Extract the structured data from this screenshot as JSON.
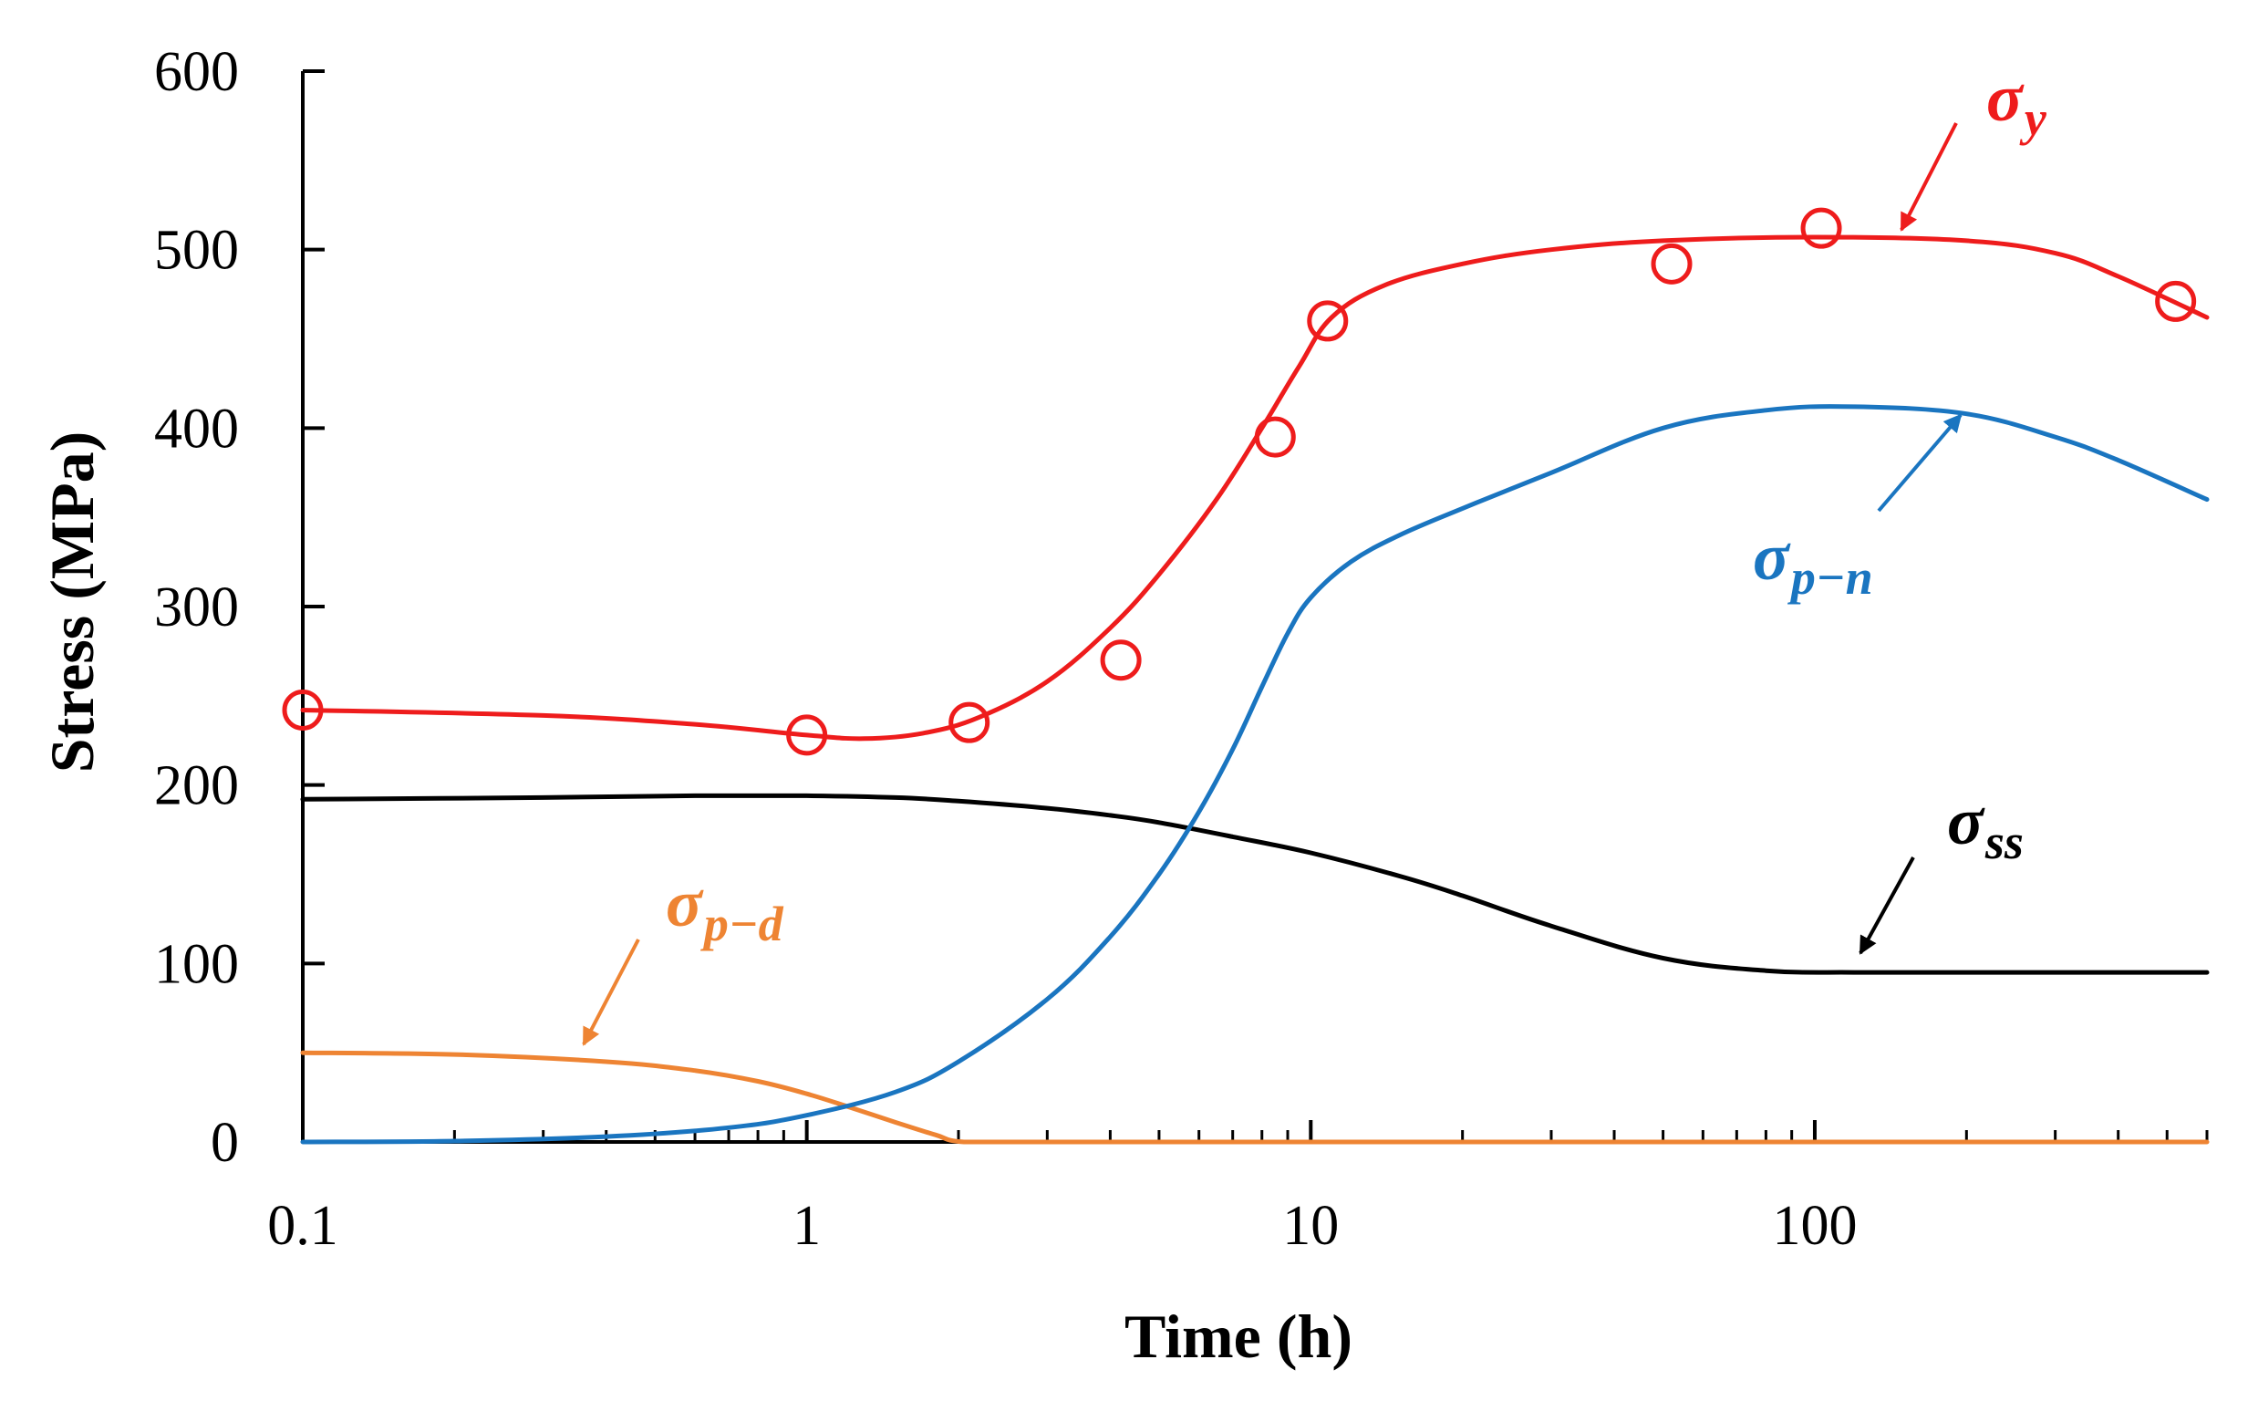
{
  "chart_data": {
    "type": "line",
    "title": "",
    "xlabel": "Time (h)",
    "ylabel": "Stress (MPa)",
    "xscale": "log",
    "xlim": [
      0.1,
      600
    ],
    "ylim": [
      0,
      600
    ],
    "xticks": [
      {
        "value": 0.1,
        "label": "0.1"
      },
      {
        "value": 1,
        "label": "1"
      },
      {
        "value": 10,
        "label": "10"
      },
      {
        "value": 100,
        "label": "100"
      }
    ],
    "yticks": [
      {
        "value": 0,
        "label": "0"
      },
      {
        "value": 100,
        "label": "100"
      },
      {
        "value": 200,
        "label": "200"
      },
      {
        "value": 300,
        "label": "300"
      },
      {
        "value": 400,
        "label": "400"
      },
      {
        "value": 500,
        "label": "500"
      },
      {
        "value": 600,
        "label": "600"
      }
    ],
    "grid": false,
    "series": [
      {
        "key": "sigma_y",
        "name": "σy",
        "label_main": "σ",
        "label_sub": "y",
        "color": "#ee1c1c",
        "x": [
          0.1,
          0.3,
          0.6,
          1.0,
          1.3,
          1.7,
          2.2,
          3.0,
          4.0,
          5.0,
          6.5,
          8.0,
          9.5,
          11,
          14,
          20,
          30,
          50,
          100,
          200,
          300,
          400,
          600
        ],
        "y": [
          242,
          239,
          234,
          228,
          226,
          229,
          238,
          258,
          288,
          318,
          360,
          400,
          435,
          462,
          480,
          492,
          500,
          505,
          507,
          505,
          498,
          485,
          462
        ],
        "markers": {
          "x": [
            0.1,
            1.0,
            2.1,
            4.2,
            8.5,
            10.8,
            52,
            103,
            520
          ],
          "y": [
            242,
            228,
            235,
            270,
            395,
            460,
            492,
            512,
            471
          ]
        }
      },
      {
        "key": "sigma_p_n",
        "name": "σp−n",
        "label_main": "σ",
        "label_sub": "p−n",
        "color": "#1a75c0",
        "x": [
          0.1,
          0.2,
          0.4,
          0.7,
          1.0,
          1.5,
          2.0,
          3.0,
          4.0,
          5.0,
          6.0,
          7.0,
          8.0,
          9.0,
          10,
          12,
          15,
          20,
          30,
          50,
          80,
          120,
          200,
          300,
          400,
          600
        ],
        "y": [
          0,
          0.5,
          3,
          8,
          15,
          28,
          45,
          80,
          115,
          150,
          185,
          220,
          255,
          285,
          305,
          325,
          340,
          355,
          375,
          400,
          410,
          412,
          408,
          395,
          382,
          360
        ]
      },
      {
        "key": "sigma_ss",
        "name": "σss",
        "label_main": "σ",
        "label_sub": "ss",
        "color": "#000000",
        "x": [
          0.1,
          0.3,
          0.6,
          1.0,
          1.5,
          2.0,
          3.0,
          4.0,
          5.0,
          7.0,
          10,
          15,
          20,
          30,
          50,
          80,
          120,
          200,
          400,
          600
        ],
        "y": [
          192,
          193,
          194,
          194,
          193,
          191,
          187,
          183,
          179,
          171,
          162,
          149,
          138,
          121,
          103,
          96,
          95,
          95,
          95,
          95
        ]
      },
      {
        "key": "sigma_p_d",
        "name": "σp−d",
        "label_main": "σ",
        "label_sub": "p−d",
        "color": "#ee8433",
        "x": [
          0.1,
          0.2,
          0.4,
          0.6,
          0.8,
          1.0,
          1.2,
          1.5,
          1.8,
          2.05,
          3,
          10,
          100,
          600
        ],
        "y": [
          50,
          49,
          45,
          40,
          34,
          27,
          20,
          11,
          4,
          0,
          0,
          0,
          0,
          0
        ]
      }
    ]
  }
}
